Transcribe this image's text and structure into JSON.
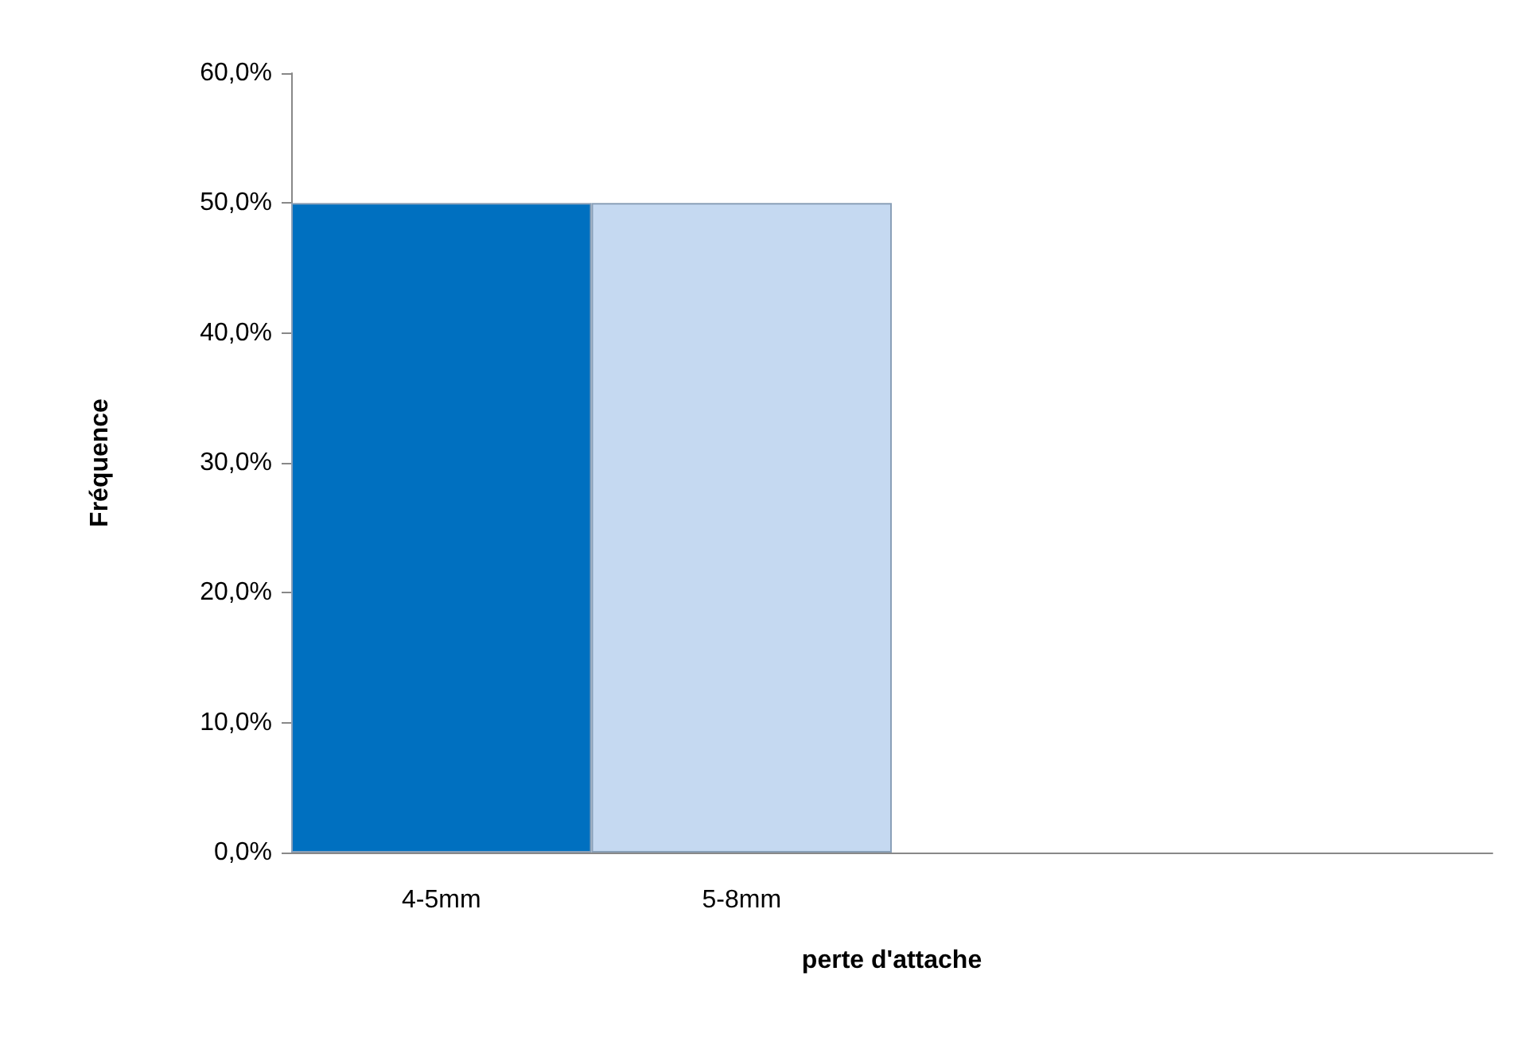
{
  "chart_data": {
    "type": "bar",
    "xlabel": "perte d'attache",
    "ylabel": "Fréquence",
    "categories": [
      "4-5mm",
      "5-8mm",
      null,
      null
    ],
    "values": [
      50,
      50,
      null,
      null
    ],
    "colors": [
      "#0070c0",
      "#c5d9f1",
      "#0070c0",
      "#c5d9f1"
    ],
    "ylim": [
      0,
      60
    ],
    "yticks": [
      {
        "value": 0,
        "label": "0,0%"
      },
      {
        "value": 10,
        "label": "10,0%"
      },
      {
        "value": 20,
        "label": "20,0%"
      },
      {
        "value": 30,
        "label": "30,0%"
      },
      {
        "value": 40,
        "label": "40,0%"
      },
      {
        "value": 50,
        "label": "50,0%"
      },
      {
        "value": 60,
        "label": "60,0%"
      }
    ],
    "grid": false
  }
}
